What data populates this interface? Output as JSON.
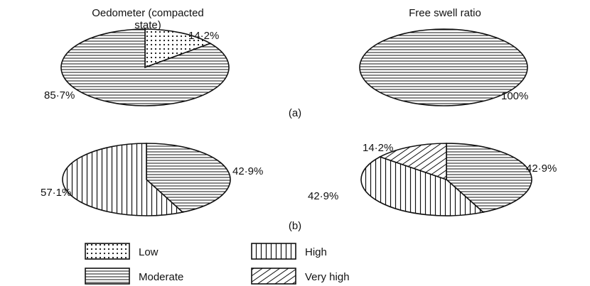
{
  "panel_labels": {
    "a": "(a)",
    "b": "(b)"
  },
  "column_titles": {
    "left_line1": "Oedometer (compacted",
    "left_line2": "state)",
    "right": "Free swell ratio"
  },
  "legend": [
    {
      "key": "low",
      "label": "Low",
      "pattern": "dots"
    },
    {
      "key": "high",
      "label": "High",
      "pattern": "vertical-lines"
    },
    {
      "key": "moderate",
      "label": "Moderate",
      "pattern": "horizontal-lines"
    },
    {
      "key": "very_high",
      "label": "Very high",
      "pattern": "diagonal-lines"
    }
  ],
  "chart_data": [
    {
      "type": "pie",
      "panel": "(a)",
      "title": "Oedometer (compacted state)",
      "slices": [
        {
          "category": "low",
          "value": 14.2,
          "label": "14·2%"
        },
        {
          "category": "moderate",
          "value": 85.7,
          "label": "85·7%"
        }
      ]
    },
    {
      "type": "pie",
      "panel": "(a)",
      "title": "Free swell ratio",
      "slices": [
        {
          "category": "moderate",
          "value": 100,
          "label": "100%"
        }
      ]
    },
    {
      "type": "pie",
      "panel": "(b)",
      "title": "",
      "slices": [
        {
          "category": "moderate",
          "value": 42.9,
          "label": "42·9%"
        },
        {
          "category": "high",
          "value": 57.1,
          "label": "57·1%"
        }
      ]
    },
    {
      "type": "pie",
      "panel": "(b)",
      "title": "",
      "slices": [
        {
          "category": "moderate",
          "value": 42.9,
          "label": "42·9%"
        },
        {
          "category": "high",
          "value": 42.9,
          "label": "42·9%"
        },
        {
          "category": "very_high",
          "value": 14.2,
          "label": "14·2%"
        }
      ]
    }
  ]
}
